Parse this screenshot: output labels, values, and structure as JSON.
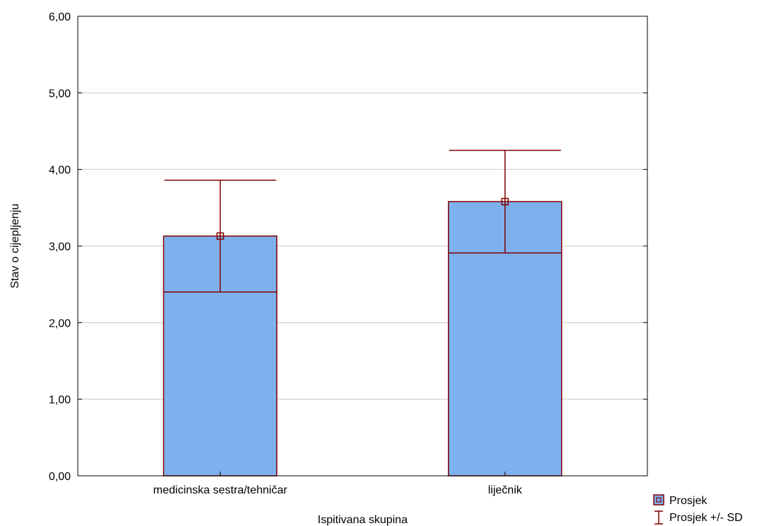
{
  "chart_data": {
    "type": "bar",
    "xlabel": "Ispitivana skupina",
    "ylabel": "Stav o cijepljenju",
    "ylim": [
      0,
      6
    ],
    "yticks": [
      0,
      1,
      2,
      3,
      4,
      5,
      6
    ],
    "ytick_labels": [
      "0,00",
      "1,00",
      "2,00",
      "3,00",
      "4,00",
      "5,00",
      "6,00"
    ],
    "grid": true,
    "categories": [
      "medicinska sestra/tehničar",
      "liječnik"
    ],
    "series": [
      {
        "name": "Prosjek",
        "values": [
          3.13,
          3.58
        ],
        "sd": [
          0.73,
          0.67
        ],
        "color": "#7fb0ee"
      }
    ],
    "legend": {
      "position": "bottom-right",
      "items": [
        {
          "label": "Prosjek",
          "marker": "square"
        },
        {
          "label": "Prosjek +/- SD",
          "marker": "errorbar"
        }
      ]
    },
    "colors": {
      "bar": "#7fb0ee",
      "line": "#800000",
      "grid": "#c8c8c8",
      "axis": "#000000"
    }
  }
}
